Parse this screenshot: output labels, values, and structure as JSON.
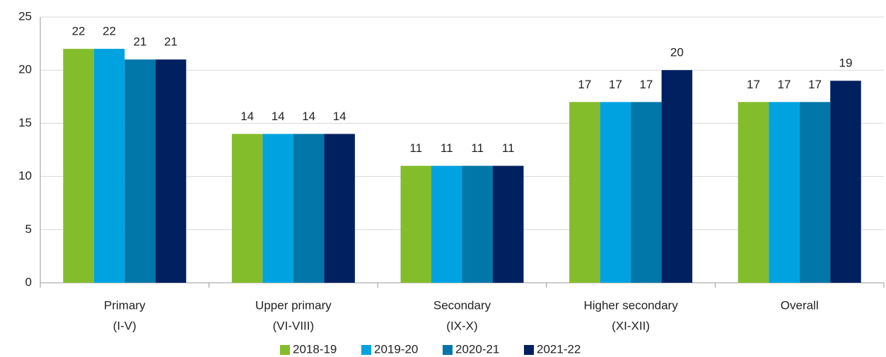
{
  "chart_data": {
    "type": "bar",
    "categories": [
      [
        "Primary",
        "(I-V)"
      ],
      [
        "Upper primary",
        "(VI-VIII)"
      ],
      [
        "Secondary",
        "(IX-X)"
      ],
      [
        "Higher secondary",
        "(XI-XII)"
      ],
      [
        "Overall"
      ]
    ],
    "series": [
      {
        "name": "2018-19",
        "color": "#84bd2b",
        "values": [
          22,
          14,
          11,
          17,
          17
        ]
      },
      {
        "name": "2019-20",
        "color": "#00a3e0",
        "values": [
          22,
          14,
          11,
          17,
          17
        ]
      },
      {
        "name": "2020-21",
        "color": "#0077a8",
        "values": [
          21,
          14,
          11,
          17,
          17
        ]
      },
      {
        "name": "2021-22",
        "color": "#002060",
        "values": [
          21,
          14,
          11,
          20,
          19
        ]
      }
    ],
    "ylim": [
      0,
      25
    ],
    "yticks": [
      0,
      5,
      10,
      15,
      20,
      25
    ],
    "grid": true,
    "legend": "bottom"
  }
}
